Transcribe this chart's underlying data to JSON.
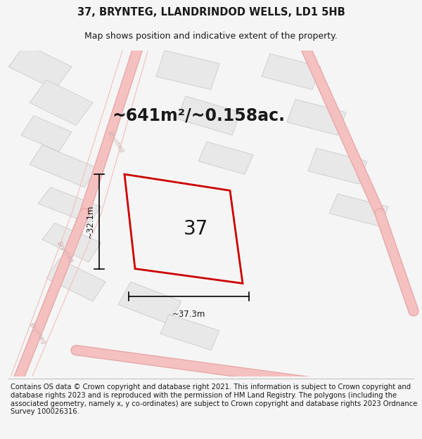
{
  "title_line1": "37, BRYNTEG, LLANDRINDOD WELLS, LD1 5HB",
  "title_line2": "Map shows position and indicative extent of the property.",
  "area_text": "~641m²/~0.158ac.",
  "property_number": "37",
  "dim_height": "~32.1m",
  "dim_width": "~37.3m",
  "copyright_text": "Contains OS data © Crown copyright and database right 2021. This information is subject to Crown copyright and database rights 2023 and is reproduced with the permission of HM Land Registry. The polygons (including the associated geometry, namely x, y co-ordinates) are subject to Crown copyright and database rights 2023 Ordnance Survey 100026316.",
  "bg_color": "#f5f5f5",
  "map_bg_color": "#ffffff",
  "road_color": "#f5c0c0",
  "road_outline_color": "#e8a8a8",
  "building_fill": "#e8e8e8",
  "building_edge": "#d0d0d0",
  "property_color": "#cc0000",
  "text_color": "#1a1a1a",
  "road_label_color": "#d0b0b0",
  "title_fontsize": 10.5,
  "subtitle_fontsize": 9.0,
  "area_fontsize": 17,
  "number_fontsize": 20,
  "dim_fontsize": 8.5,
  "copyright_fontsize": 7.2
}
